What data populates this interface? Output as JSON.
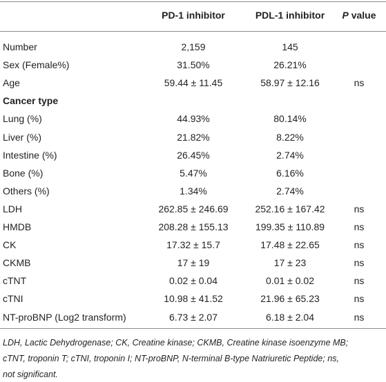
{
  "table": {
    "header": [
      "PD-1 inhibitor",
      "PDL-1 inhibitor"
    ],
    "p_header": {
      "italic": "P",
      "rest": "value"
    },
    "rows": [
      {
        "label": "Number",
        "pd1": "2,159",
        "pdl1": "145"
      },
      {
        "label": "Sex (Female%)",
        "pd1": "31.50%",
        "pdl1": "26.21%"
      },
      {
        "label": "Age",
        "pd1": "59.44 ± 11.45",
        "pdl1": "58.97 ± 12.16",
        "p": "ns"
      },
      {
        "section": "Cancer type"
      },
      {
        "label": "Lung (%)",
        "pd1": "44.93%",
        "pdl1": "80.14%"
      },
      {
        "label": "Liver (%)",
        "pd1": "21.82%",
        "pdl1": "8.22%"
      },
      {
        "label": "Intestine (%)",
        "pd1": "26.45%",
        "pdl1": "2.74%"
      },
      {
        "label": "Bone (%)",
        "pd1": "5.47%",
        "pdl1": "6.16%"
      },
      {
        "label": "Others (%)",
        "pd1": "1.34%",
        "pdl1": "2.74%"
      },
      {
        "label": "LDH",
        "pd1": "262.85 ± 246.69",
        "pdl1": "252.16 ± 167.42",
        "p": "ns"
      },
      {
        "label": "HMDB",
        "pd1": "208.28 ± 155.13",
        "pdl1": "199.35 ± 110.89",
        "p": "ns"
      },
      {
        "label": "CK",
        "pd1": "17.32 ± 15.7",
        "pdl1": "17.48 ± 22.65",
        "p": "ns"
      },
      {
        "label": "CKMB",
        "pd1": "17 ± 19",
        "pdl1": "17 ± 23",
        "p": "ns"
      },
      {
        "label": "cTNT",
        "pd1": "0.02 ± 0.04",
        "pdl1": "0.01 ± 0.02",
        "p": "ns"
      },
      {
        "label": "cTNI",
        "pd1": "10.98 ± 41.52",
        "pdl1": "21.96 ± 65.23",
        "p": "ns"
      },
      {
        "label": "NT-proBNP (Log2 transform)",
        "pd1": "6.73 ± 2.07",
        "pdl1": "6.18 ± 2.04",
        "p": "ns"
      }
    ],
    "footnote": [
      "LDH, Lactic Dehydrogenase; CK, Creatine kinase; CKMB, Creatine kinase isoenzyme MB;",
      "cTNT, troponin T; cTNI, troponin I; NT-proBNP, N-terminal B-type Natriuretic Peptide; ns,",
      "not significant."
    ]
  }
}
